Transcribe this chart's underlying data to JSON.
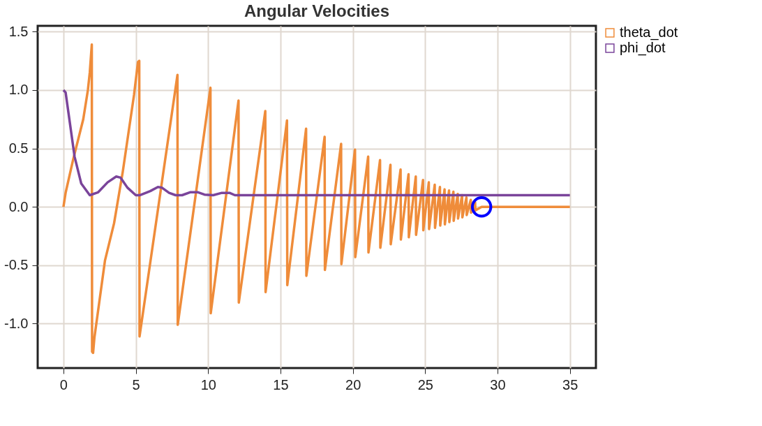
{
  "chart_data": {
    "type": "line",
    "title": "Angular Velocities",
    "xlim": [
      -1.78,
      36.8
    ],
    "xticks": [
      0,
      5,
      10,
      15,
      20,
      25,
      30,
      35
    ],
    "ylim": [
      -1.38,
      1.55
    ],
    "yticks": [
      {
        "value": -1,
        "label": "-1.0"
      },
      {
        "value": -0.5,
        "label": "-0.5"
      },
      {
        "value": 0,
        "label": "0.0"
      },
      {
        "value": 0.5,
        "label": "0.5"
      },
      {
        "value": 1,
        "label": "1.0"
      },
      {
        "value": 1.5,
        "label": "1.5"
      }
    ],
    "grid": true,
    "legend": "right",
    "marker": "none",
    "line_style": "solid",
    "series": [
      {
        "name": "theta_dot",
        "color": "#ef8c3a",
        "x": [
          0,
          0.15,
          0.68,
          1.37,
          1.69,
          1.82,
          1.96,
          1.98,
          2.05,
          2.14,
          2.87,
          3.5,
          4.1,
          4.88,
          5.15,
          5.24,
          5.26,
          7.88,
          7.9,
          10.16,
          10.18,
          12.1,
          12.12,
          13.95,
          13.97,
          15.45,
          15.47,
          16.77,
          16.79,
          18.05,
          18.07,
          19.19,
          19.21,
          20.15,
          20.17,
          21.06,
          21.08,
          21.88,
          21.9,
          22.6,
          22.62,
          23.3,
          23.32,
          23.85,
          23.87,
          24.35,
          24.37,
          24.85,
          24.87,
          25.25,
          25.27,
          25.66,
          25.68,
          26.02,
          26.04,
          26.34,
          26.36,
          26.65,
          26.67,
          26.95,
          26.97,
          27.25,
          27.27,
          27.55,
          27.57,
          27.85,
          27.87,
          28.15,
          28.17,
          28.45,
          28.47,
          28.9,
          35
        ],
        "values": [
          0,
          0.12,
          0.41,
          0.75,
          1.0,
          1.15,
          1.39,
          -1.24,
          -1.25,
          -1.12,
          -0.46,
          -0.14,
          0.3,
          0.96,
          1.24,
          1.25,
          -1.11,
          1.13,
          -1.01,
          1.02,
          -0.91,
          0.91,
          -0.82,
          0.82,
          -0.73,
          0.74,
          -0.67,
          0.67,
          -0.59,
          0.6,
          -0.54,
          0.54,
          -0.49,
          0.49,
          -0.43,
          0.43,
          -0.39,
          0.4,
          -0.35,
          0.36,
          -0.32,
          0.32,
          -0.28,
          0.28,
          -0.26,
          0.26,
          -0.24,
          0.23,
          -0.2,
          0.21,
          -0.19,
          0.19,
          -0.18,
          0.17,
          -0.16,
          0.15,
          -0.15,
          0.14,
          -0.13,
          0.13,
          -0.12,
          0.11,
          -0.1,
          0.1,
          -0.09,
          0.08,
          -0.07,
          0.06,
          -0.05,
          0.04,
          -0.03,
          0,
          0
        ]
      },
      {
        "name": "phi_dot",
        "color": "#7a449a",
        "x": [
          0,
          0.15,
          0.77,
          1.23,
          1.82,
          2.4,
          3.05,
          3.65,
          3.95,
          4.42,
          5.0,
          5.3,
          6.0,
          6.53,
          6.8,
          7.3,
          7.75,
          8.2,
          8.75,
          9.3,
          9.75,
          10.35,
          10.95,
          11.48,
          11.85,
          35
        ],
        "values": [
          1.0,
          0.98,
          0.43,
          0.2,
          0.1,
          0.125,
          0.21,
          0.26,
          0.25,
          0.165,
          0.1,
          0.1,
          0.135,
          0.17,
          0.165,
          0.12,
          0.1,
          0.1,
          0.125,
          0.125,
          0.105,
          0.1,
          0.12,
          0.12,
          0.1,
          0.1
        ]
      },
      {
        "type": "scatter",
        "color": "#0000ff",
        "marker": "circle",
        "x": [
          28.9
        ],
        "values": [
          0
        ]
      }
    ]
  }
}
